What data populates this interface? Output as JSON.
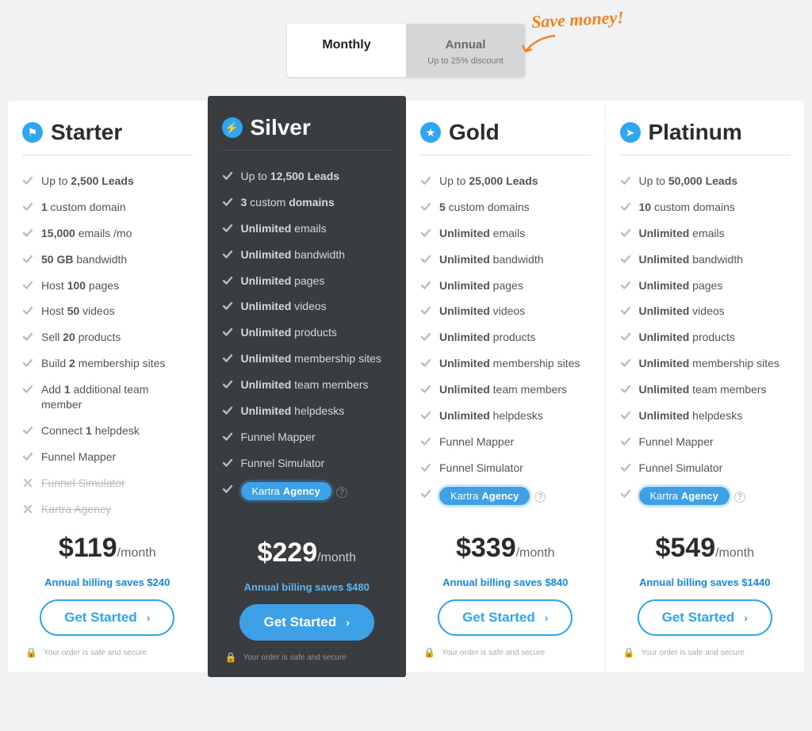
{
  "colors": {
    "accent": "#2fa7f0",
    "highlight_bg": "#3a3d40",
    "callout": "#f58220",
    "page_bg": "#f1f2f3"
  },
  "toggle": {
    "monthly": "Monthly",
    "annual": "Annual",
    "annual_sub": "Up to 25% discount",
    "callout": "Save money!"
  },
  "common": {
    "help_glyph": "?",
    "secure_text": "Your order is safe and secure",
    "per_label": "/month",
    "cta_label": "Get Started",
    "chevron": "›"
  },
  "plans": [
    {
      "id": "starter",
      "title": "Starter",
      "icon_glyph": "⚑",
      "highlight": false,
      "price": "$119",
      "savings": "Annual billing saves $240",
      "features": [
        {
          "html": "Up to <b>2,500 Leads</b>",
          "enabled": true
        },
        {
          "html": "<b>1</b> custom domain",
          "enabled": true
        },
        {
          "html": "<b>15,000</b> emails /mo",
          "enabled": true
        },
        {
          "html": "<b>50 GB</b> bandwidth",
          "enabled": true
        },
        {
          "html": "Host <b>100</b> pages",
          "enabled": true
        },
        {
          "html": "Host <b>50</b> videos",
          "enabled": true
        },
        {
          "html": "Sell <b>20</b> products",
          "enabled": true
        },
        {
          "html": "Build <b>2</b> membership sites",
          "enabled": true
        },
        {
          "html": "Add <b>1</b> additional team member",
          "enabled": true
        },
        {
          "html": "Connect <b>1</b> helpdesk",
          "enabled": true
        },
        {
          "html": "Funnel Mapper",
          "enabled": true
        },
        {
          "html": "<span class='strike'>Funnel Simulator</span>",
          "enabled": false
        },
        {
          "html": "<span class='strike'>Kartra Agency</span>",
          "enabled": false
        }
      ]
    },
    {
      "id": "silver",
      "title": "Silver",
      "icon_glyph": "⚡",
      "highlight": true,
      "price": "$229",
      "savings": "Annual billing saves $480",
      "features": [
        {
          "html": "Up to <b>12,500 Leads</b>",
          "enabled": true
        },
        {
          "html": "<b>3</b> custom <b>domains</b>",
          "enabled": true
        },
        {
          "html": "<b>Unlimited</b> emails",
          "enabled": true
        },
        {
          "html": "<b>Unlimited</b> bandwidth",
          "enabled": true
        },
        {
          "html": "<b>Unlimited</b> pages",
          "enabled": true
        },
        {
          "html": "<b>Unlimited</b> videos",
          "enabled": true
        },
        {
          "html": "<b>Unlimited</b> products",
          "enabled": true
        },
        {
          "html": "<b>Unlimited</b> membership sites",
          "enabled": true
        },
        {
          "html": "<b>Unlimited</b> team members",
          "enabled": true
        },
        {
          "html": "<b>Unlimited</b> helpdesks",
          "enabled": true
        },
        {
          "html": "Funnel Mapper",
          "enabled": true
        },
        {
          "html": "Funnel Simulator",
          "enabled": true
        },
        {
          "html": "",
          "enabled": true,
          "agency": true
        }
      ]
    },
    {
      "id": "gold",
      "title": "Gold",
      "icon_glyph": "★",
      "highlight": false,
      "price": "$339",
      "savings": "Annual billing saves $840",
      "features": [
        {
          "html": "Up to <b>25,000 Leads</b>",
          "enabled": true
        },
        {
          "html": "<b>5</b> custom domains",
          "enabled": true
        },
        {
          "html": "<b>Unlimited</b> emails",
          "enabled": true
        },
        {
          "html": "<b>Unlimited</b> bandwidth",
          "enabled": true
        },
        {
          "html": "<b>Unlimited</b> pages",
          "enabled": true
        },
        {
          "html": "<b>Unlimited</b> videos",
          "enabled": true
        },
        {
          "html": "<b>Unlimited</b> products",
          "enabled": true
        },
        {
          "html": "<b>Unlimited</b> membership sites",
          "enabled": true
        },
        {
          "html": "<b>Unlimited</b> team members",
          "enabled": true
        },
        {
          "html": "<b>Unlimited</b> helpdesks",
          "enabled": true
        },
        {
          "html": "Funnel Mapper",
          "enabled": true
        },
        {
          "html": "Funnel Simulator",
          "enabled": true
        },
        {
          "html": "",
          "enabled": true,
          "agency": true
        }
      ]
    },
    {
      "id": "platinum",
      "title": "Platinum",
      "icon_glyph": "➤",
      "highlight": false,
      "price": "$549",
      "savings": "Annual billing saves $1440",
      "features": [
        {
          "html": "Up to <b>50,000 Leads</b>",
          "enabled": true
        },
        {
          "html": "<b>10</b> custom domains",
          "enabled": true
        },
        {
          "html": "<b>Unlimited</b> emails",
          "enabled": true
        },
        {
          "html": "<b>Unlimited</b> bandwidth",
          "enabled": true
        },
        {
          "html": "<b>Unlimited</b> pages",
          "enabled": true
        },
        {
          "html": "<b>Unlimited</b> videos",
          "enabled": true
        },
        {
          "html": "<b>Unlimited</b> products",
          "enabled": true
        },
        {
          "html": "<b>Unlimited</b> membership sites",
          "enabled": true
        },
        {
          "html": "<b>Unlimited</b> team members",
          "enabled": true
        },
        {
          "html": "<b>Unlimited</b> helpdesks",
          "enabled": true
        },
        {
          "html": "Funnel Mapper",
          "enabled": true
        },
        {
          "html": "Funnel Simulator",
          "enabled": true
        },
        {
          "html": "",
          "enabled": true,
          "agency": true
        }
      ]
    }
  ],
  "agency_pill": {
    "prefix": "Kartra",
    "bold": "Agency"
  }
}
